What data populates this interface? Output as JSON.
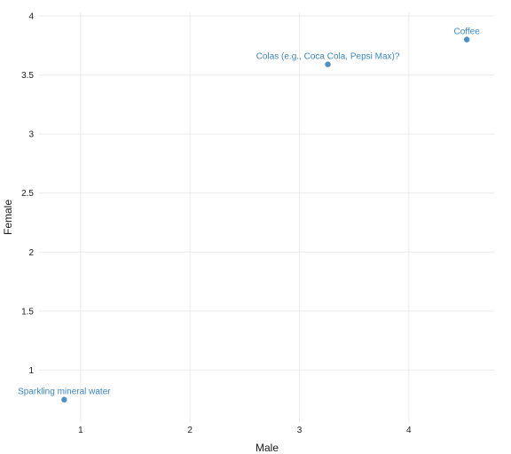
{
  "chart_data": {
    "type": "scatter",
    "title": "",
    "xlabel": "Male",
    "ylabel": "Female",
    "xlim": [
      0.62,
      4.78
    ],
    "ylim": [
      0.56,
      4.03
    ],
    "x_ticks": [
      1,
      2,
      3,
      4
    ],
    "y_ticks": [
      1,
      1.5,
      2,
      2.5,
      3,
      3.5,
      4
    ],
    "grid": true,
    "legend": "none",
    "point_color": "#4a90c8",
    "label_color": "#3a86c4",
    "points": [
      {
        "label": "Sparkling mineral water",
        "x": 0.85,
        "y": 0.75
      },
      {
        "label": "Colas (e.g., Coca Cola, Pepsi Max)?",
        "x": 3.26,
        "y": 3.59
      },
      {
        "label": "Coffee",
        "x": 4.53,
        "y": 3.8
      }
    ]
  }
}
